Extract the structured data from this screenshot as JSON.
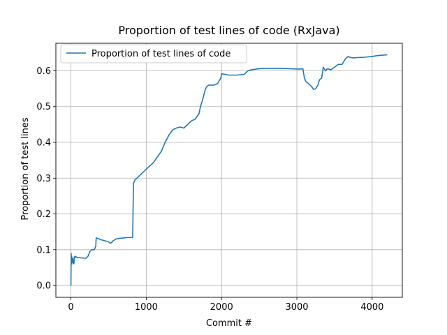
{
  "chart_data": {
    "type": "line",
    "title": "Proportion of test lines of code (RxJava)",
    "xlabel": "Commit #",
    "ylabel": "Proportion of test lines",
    "xlim": [
      -200,
      4400
    ],
    "ylim": [
      -0.033,
      0.677
    ],
    "grid": true,
    "legend_position": "top-left",
    "xticks": [
      0,
      1000,
      2000,
      3000,
      4000
    ],
    "xtick_labels": [
      "0",
      "1000",
      "2000",
      "3000",
      "4000"
    ],
    "yticks": [
      0.0,
      0.1,
      0.2,
      0.3,
      0.4,
      0.5,
      0.6
    ],
    "ytick_labels": [
      "0.0",
      "0.1",
      "0.2",
      "0.3",
      "0.4",
      "0.5",
      "0.6"
    ],
    "series": [
      {
        "name": "Proportion of test lines of code",
        "color": "#1f77b4",
        "x": [
          0,
          3,
          8,
          12,
          18,
          25,
          30,
          35,
          40,
          45,
          55,
          60,
          70,
          80,
          100,
          150,
          200,
          230,
          250,
          280,
          310,
          330,
          335,
          350,
          400,
          450,
          500,
          520,
          540,
          560,
          600,
          650,
          700,
          750,
          800,
          820,
          830,
          840,
          850,
          900,
          950,
          1000,
          1050,
          1080,
          1100,
          1150,
          1200,
          1250,
          1300,
          1350,
          1400,
          1450,
          1500,
          1550,
          1600,
          1650,
          1700,
          1720,
          1750,
          1780,
          1800,
          1830,
          1850,
          1900,
          1950,
          1990,
          2000,
          2050,
          2100,
          2200,
          2300,
          2350,
          2400,
          2500,
          2600,
          2700,
          2800,
          2900,
          3000,
          3050,
          3080,
          3100,
          3120,
          3150,
          3200,
          3220,
          3250,
          3280,
          3300,
          3330,
          3350,
          3380,
          3400,
          3420,
          3450,
          3500,
          3550,
          3600,
          3650,
          3680,
          3700,
          3750,
          3800,
          3900,
          4000,
          4050,
          4100,
          4150,
          4200
        ],
        "y": [
          0.0,
          0.09,
          0.06,
          0.08,
          0.065,
          0.075,
          0.06,
          0.07,
          0.062,
          0.08,
          0.078,
          0.082,
          0.08,
          0.079,
          0.078,
          0.077,
          0.076,
          0.083,
          0.095,
          0.1,
          0.1,
          0.11,
          0.133,
          0.132,
          0.128,
          0.125,
          0.122,
          0.118,
          0.12,
          0.125,
          0.13,
          0.132,
          0.133,
          0.134,
          0.134,
          0.135,
          0.285,
          0.29,
          0.295,
          0.305,
          0.315,
          0.325,
          0.335,
          0.34,
          0.345,
          0.36,
          0.375,
          0.4,
          0.42,
          0.435,
          0.44,
          0.443,
          0.44,
          0.45,
          0.46,
          0.465,
          0.48,
          0.5,
          0.52,
          0.545,
          0.555,
          0.56,
          0.56,
          0.56,
          0.565,
          0.58,
          0.592,
          0.59,
          0.588,
          0.588,
          0.59,
          0.6,
          0.603,
          0.606,
          0.607,
          0.607,
          0.607,
          0.606,
          0.605,
          0.605,
          0.606,
          0.58,
          0.57,
          0.565,
          0.555,
          0.548,
          0.55,
          0.56,
          0.575,
          0.58,
          0.61,
          0.6,
          0.605,
          0.605,
          0.603,
          0.61,
          0.618,
          0.618,
          0.635,
          0.64,
          0.638,
          0.636,
          0.637,
          0.638,
          0.64,
          0.642,
          0.643,
          0.644,
          0.645
        ]
      }
    ]
  }
}
